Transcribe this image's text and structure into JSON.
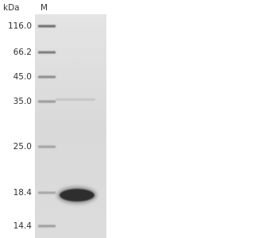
{
  "header": {
    "unit": "kDa",
    "lane": "M"
  },
  "markers": [
    "116.0",
    "66.2",
    "45.0",
    "35.0",
    "25.0",
    "18.4",
    "14.4"
  ]
}
